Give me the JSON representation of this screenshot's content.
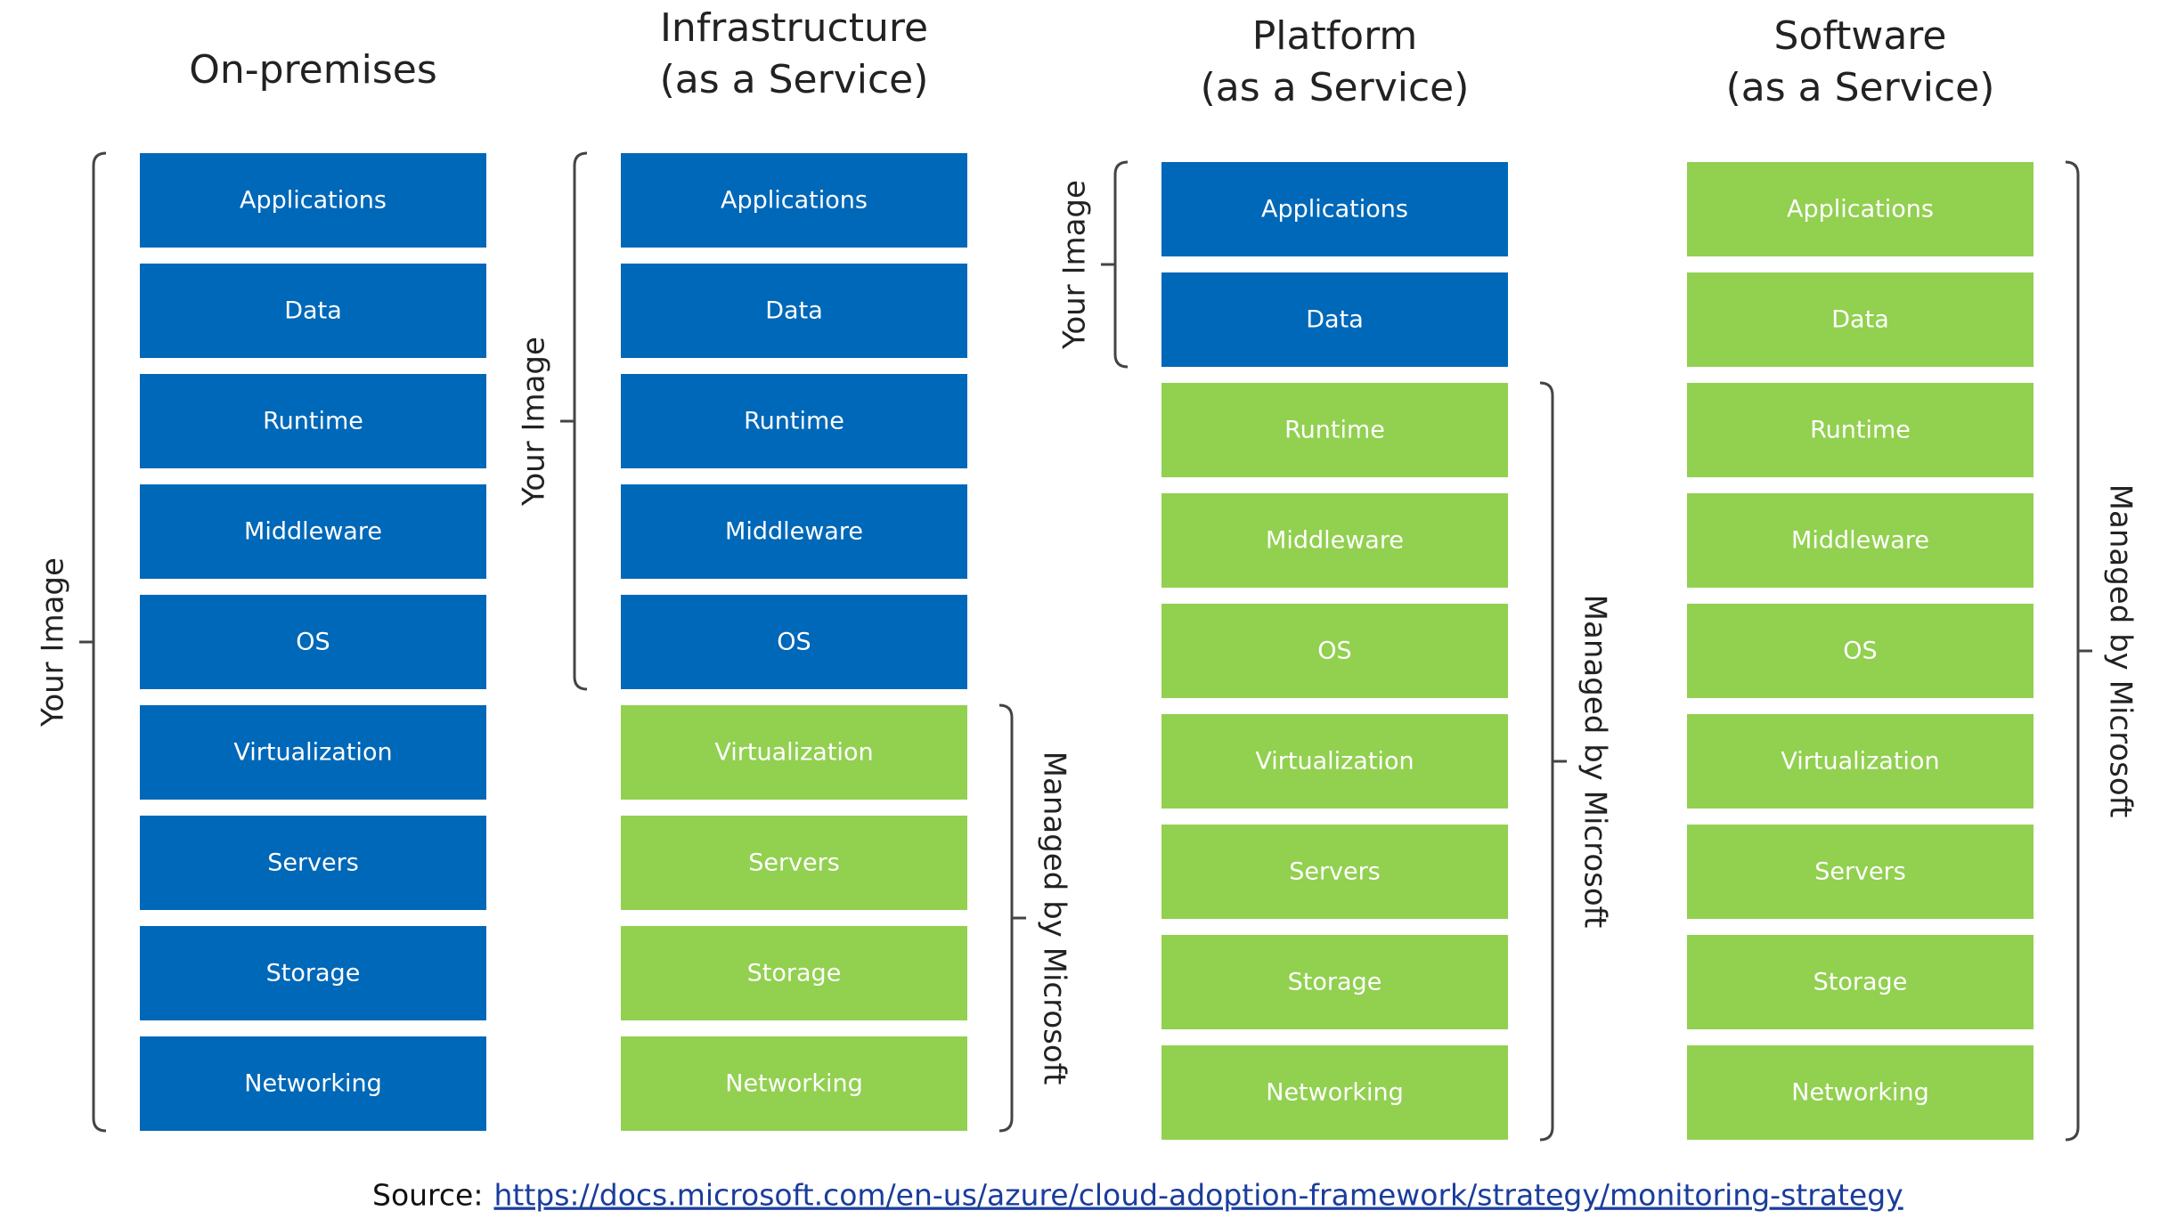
{
  "columns": [
    {
      "title": [
        "On-premises"
      ],
      "groups": [
        {
          "label": "Your Image",
          "side": "left",
          "color": "#0068b8",
          "layers": [
            "Applications",
            "Data",
            "Runtime",
            "Middleware",
            "OS",
            "Virtualization",
            "Servers",
            "Storage",
            "Networking"
          ]
        }
      ]
    },
    {
      "title": [
        "Infrastructure",
        "(as a Service)"
      ],
      "groups": [
        {
          "label": "Your Image",
          "side": "left",
          "color": "#0068b8",
          "layers": [
            "Applications",
            "Data",
            "Runtime",
            "Middleware",
            "OS"
          ]
        },
        {
          "label": "Managed by Microsoft",
          "side": "right",
          "color": "#92d050",
          "layers": [
            "Virtualization",
            "Servers",
            "Storage",
            "Networking"
          ]
        }
      ]
    },
    {
      "title": [
        "Platform",
        "(as a Service)"
      ],
      "groups": [
        {
          "label": "Your Image",
          "side": "left",
          "color": "#0068b8",
          "layers": [
            "Applications",
            "Data"
          ]
        },
        {
          "label": "Managed by Microsoft",
          "side": "right",
          "color": "#92d050",
          "layers": [
            "Runtime",
            "Middleware",
            "OS",
            "Virtualization",
            "Servers",
            "Storage",
            "Networking"
          ]
        }
      ]
    },
    {
      "title": [
        "Software",
        "(as a Service)"
      ],
      "groups": [
        {
          "label": "Managed by Microsoft",
          "side": "right",
          "color": "#92d050",
          "layers": [
            "Applications",
            "Data",
            "Runtime",
            "Middleware",
            "OS",
            "Virtualization",
            "Servers",
            "Storage",
            "Networking"
          ]
        }
      ]
    }
  ],
  "source": {
    "label": "Source:",
    "link": "https://docs.microsoft.com/en-us/azure/cloud-adoption-framework/strategy/monitoring-strategy"
  }
}
